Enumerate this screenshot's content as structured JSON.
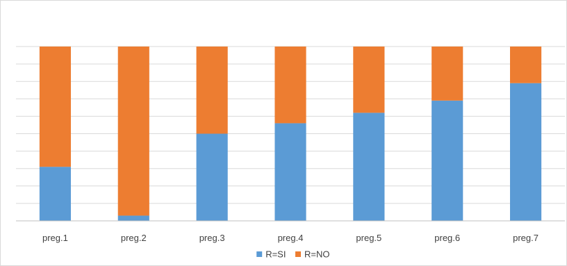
{
  "chart_data": {
    "type": "bar",
    "stacked": true,
    "normalized": true,
    "categories": [
      "preg.1",
      "preg.2",
      "preg.3",
      "preg.4",
      "preg.5",
      "preg.6",
      "preg.7"
    ],
    "series": [
      {
        "name": "R=SI",
        "color": "#5b9bd5",
        "values": [
          31,
          3,
          50,
          56,
          62,
          69,
          79
        ]
      },
      {
        "name": "R=NO",
        "color": "#ed7d31",
        "values": [
          69,
          97,
          50,
          44,
          38,
          31,
          21
        ]
      }
    ],
    "ylim": [
      0,
      100
    ],
    "y_gridlines": 10,
    "y_tick_labels_visible": false,
    "grid": true,
    "legend_position": "bottom"
  }
}
